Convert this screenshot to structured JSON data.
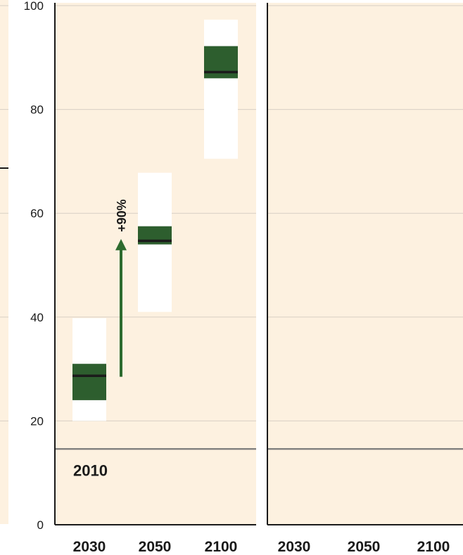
{
  "chart_data": {
    "type": "boxplot",
    "ylim": [
      0,
      100
    ],
    "yticks": [
      0,
      20,
      40,
      60,
      80,
      100
    ],
    "baseline": {
      "value": 14.6,
      "label": "2010"
    },
    "annotation": {
      "label": "+90%",
      "from": 28.5,
      "to": 54.5
    },
    "colors": {
      "background": "#fdf1e0",
      "box_outer": "#ffffff",
      "box_inner": "#2d5e2e",
      "median": "#1b1b1b",
      "arrow": "#2d6b2f",
      "gridline": "#d8d0c4",
      "baseline": "#7a7a7a"
    },
    "panels": [
      {
        "categories": [
          "2030",
          "2050",
          "2100"
        ],
        "boxes": [
          {
            "category": "2030",
            "outer": [
              20,
              39.8
            ],
            "inner": [
              24,
              31
            ],
            "median": 28.7
          },
          {
            "category": "2050",
            "outer": [
              41,
              67.8
            ],
            "inner": [
              54,
              57.5
            ],
            "median": 54.7
          },
          {
            "category": "2100",
            "outer": [
              70.5,
              97.3
            ],
            "inner": [
              86,
              92.2
            ],
            "median": 87.2
          }
        ]
      },
      {
        "categories": [
          "2030",
          "2050",
          "2100"
        ],
        "boxes": []
      }
    ]
  }
}
